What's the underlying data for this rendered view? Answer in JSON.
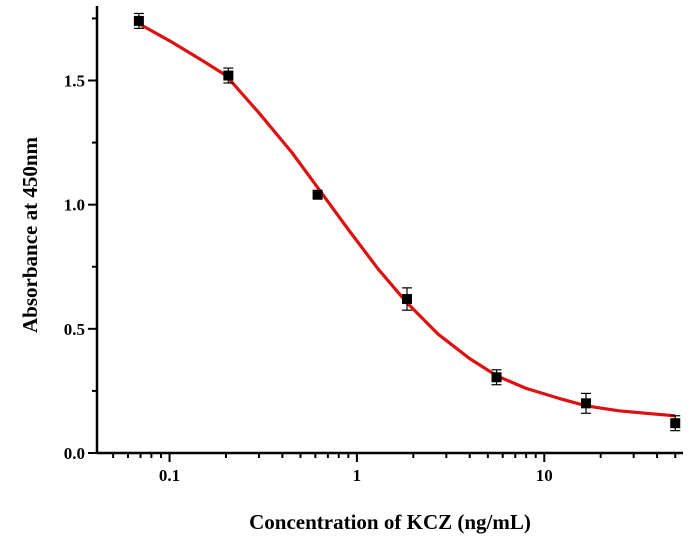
{
  "chart_data": {
    "type": "scatter",
    "title": "",
    "xlabel": "Concentration of KCZ (ng/mL)",
    "ylabel": "Absorbance at 450nm",
    "xscale": "log",
    "xlim": [
      0.041,
      55
    ],
    "ylim": [
      0,
      1.8
    ],
    "x_ticks": [
      0.1,
      1,
      10
    ],
    "x_tick_labels": [
      "0.1",
      "1",
      "10"
    ],
    "y_ticks": [
      0,
      0.5,
      1.0,
      1.5
    ],
    "y_tick_labels": [
      "0.0",
      "0.5",
      "1.0",
      "1.5"
    ],
    "grid": false,
    "legend": "none",
    "series": [
      {
        "kind": "points-with-error-bars",
        "color": "#000000",
        "marker": "square",
        "x": [
          0.0686,
          0.206,
          0.617,
          1.85,
          5.56,
          16.7,
          50
        ],
        "y": [
          1.74,
          1.52,
          1.04,
          0.62,
          0.305,
          0.2,
          0.12
        ],
        "error": [
          0.03,
          0.03,
          0.01,
          0.045,
          0.03,
          0.04,
          0.03
        ]
      },
      {
        "kind": "fitted-curve",
        "color": "#dd1111",
        "x": [
          0.068,
          0.1,
          0.15,
          0.2,
          0.3,
          0.45,
          0.63,
          0.9,
          1.3,
          1.85,
          2.7,
          4,
          5.6,
          8,
          12,
          16.7,
          25,
          35,
          50
        ],
        "y": [
          1.73,
          1.66,
          1.58,
          1.52,
          1.37,
          1.21,
          1.06,
          0.9,
          0.74,
          0.605,
          0.48,
          0.38,
          0.31,
          0.26,
          0.22,
          0.19,
          0.17,
          0.16,
          0.15
        ]
      }
    ]
  }
}
